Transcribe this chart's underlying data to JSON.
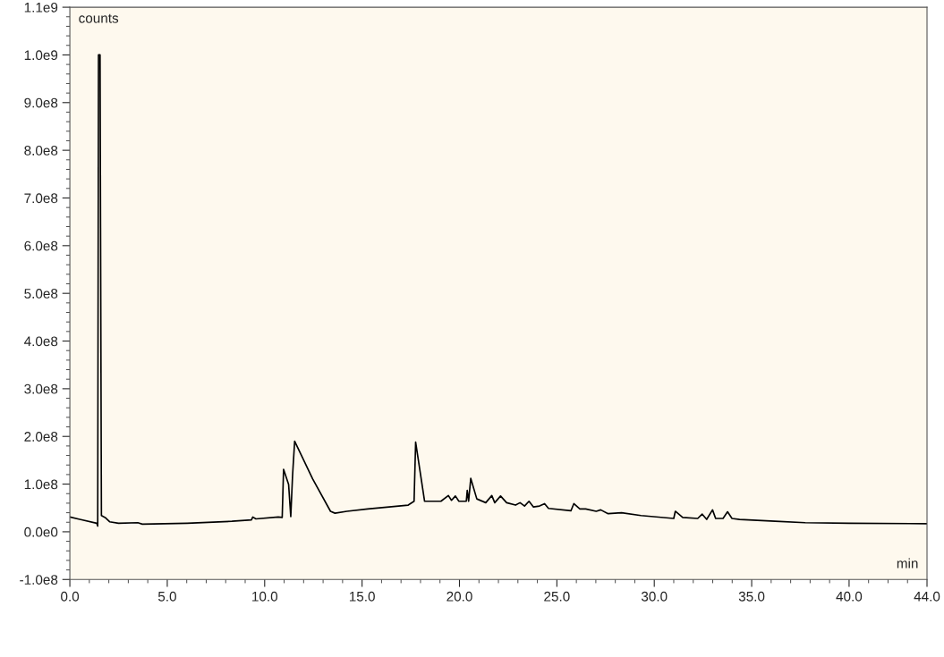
{
  "chart_data": {
    "type": "line",
    "xlabel": "min",
    "ylabel": "counts",
    "series": [
      {
        "color": "#000000",
        "x": [
          0.0,
          0.51,
          1.38,
          1.43,
          1.47,
          1.55,
          1.62,
          1.81,
          2.04,
          2.5,
          3.49,
          3.72,
          6.02,
          8.32,
          9.32,
          9.39,
          9.55,
          10.7,
          10.9,
          10.97,
          11.23,
          11.34,
          11.43,
          11.46,
          11.54,
          12.46,
          13.38,
          13.61,
          14.22,
          15.29,
          17.37,
          17.67,
          17.75,
          18.21,
          19.05,
          19.43,
          19.59,
          19.79,
          19.97,
          20.35,
          20.4,
          20.47,
          20.58,
          20.89,
          21.35,
          21.66,
          21.81,
          22.11,
          22.42,
          22.88,
          23.11,
          23.34,
          23.57,
          23.8,
          24.11,
          24.37,
          24.57,
          25.72,
          25.87,
          26.18,
          26.48,
          27.02,
          27.25,
          27.63,
          28.32,
          29.32,
          31.0,
          31.08,
          31.46,
          32.23,
          32.46,
          32.69,
          32.99,
          33.15,
          33.53,
          33.76,
          33.99,
          34.38,
          36.21,
          37.75,
          40.0,
          44.0
        ],
        "values": [
          31000000,
          26000000,
          18000000,
          12000000,
          1000000000,
          1000000000,
          34000000,
          30000000,
          21000000,
          18000000,
          19000000,
          16000000,
          18000000,
          22000000,
          25000000,
          31000000,
          27000000,
          31000000,
          30000000,
          131000000,
          99000000,
          32000000,
          116000000,
          137000000,
          190000000,
          111000000,
          43000000,
          39000000,
          43000000,
          48000000,
          56000000,
          64000000,
          188000000,
          64000000,
          64000000,
          76000000,
          66000000,
          75000000,
          64000000,
          64000000,
          87000000,
          64000000,
          112000000,
          69000000,
          61000000,
          76000000,
          61000000,
          75000000,
          61000000,
          56000000,
          61000000,
          54000000,
          64000000,
          52000000,
          54000000,
          59000000,
          49000000,
          44000000,
          59000000,
          48000000,
          48000000,
          43000000,
          46000000,
          38000000,
          40000000,
          34000000,
          28000000,
          43000000,
          30000000,
          28000000,
          37000000,
          26000000,
          46000000,
          28000000,
          28000000,
          42000000,
          28000000,
          26000000,
          22000000,
          19000000,
          18000000,
          17000000
        ]
      }
    ],
    "xlim": [
      0,
      44
    ],
    "xticks": [
      {
        "value": 0,
        "label": "0.0"
      },
      {
        "value": 5,
        "label": "5.0"
      },
      {
        "value": 10,
        "label": "10.0"
      },
      {
        "value": 15,
        "label": "15.0"
      },
      {
        "value": 20,
        "label": "20.0"
      },
      {
        "value": 25,
        "label": "25.0"
      },
      {
        "value": 30,
        "label": "30.0"
      },
      {
        "value": 35,
        "label": "35.0"
      },
      {
        "value": 40,
        "label": "40.0"
      },
      {
        "value": 44,
        "label": "44.0"
      }
    ],
    "ylim": [
      -100000000,
      1100000000
    ],
    "yticks": [
      {
        "value": -100000000,
        "label": "-1.0e8"
      },
      {
        "value": 0,
        "label": "0.0e0"
      },
      {
        "value": 100000000,
        "label": "1.0e8"
      },
      {
        "value": 200000000,
        "label": "2.0e8"
      },
      {
        "value": 300000000,
        "label": "3.0e8"
      },
      {
        "value": 400000000,
        "label": "4.0e8"
      },
      {
        "value": 500000000,
        "label": "5.0e8"
      },
      {
        "value": 600000000,
        "label": "6.0e8"
      },
      {
        "value": 700000000,
        "label": "7.0e8"
      },
      {
        "value": 800000000,
        "label": "8.0e8"
      },
      {
        "value": 900000000,
        "label": "9.0e8"
      },
      {
        "value": 1000000000,
        "label": "1.0e9"
      },
      {
        "value": 1100000000,
        "label": "1.1e9"
      }
    ],
    "grid": false,
    "legend": false,
    "marker": "none",
    "line_style": "solid"
  }
}
